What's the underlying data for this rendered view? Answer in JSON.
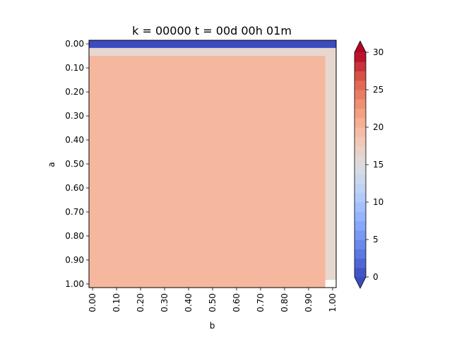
{
  "chart_data": {
    "type": "heatmap",
    "title": "k = 00000 t = 00d 00h 01m",
    "xlabel": "b",
    "ylabel": "a",
    "xlim": [
      0.0,
      1.0
    ],
    "ylim": [
      0.0,
      1.0
    ],
    "y_inverted": true,
    "x_ticks": [
      "0.00",
      "0.10",
      "0.20",
      "0.30",
      "0.40",
      "0.50",
      "0.60",
      "0.70",
      "0.80",
      "0.90",
      "1.00"
    ],
    "y_ticks": [
      "0.00",
      "0.10",
      "0.20",
      "0.30",
      "0.40",
      "0.50",
      "0.60",
      "0.70",
      "0.80",
      "0.90",
      "1.00"
    ],
    "colorbar": {
      "range": [
        0,
        30
      ],
      "ticks": [
        "0",
        "5",
        "10",
        "15",
        "20",
        "25",
        "30"
      ],
      "levels": 24,
      "colormap": "coolwarm",
      "extend": "both"
    },
    "regions": [
      {
        "name": "top-boundary",
        "b": [
          0.0,
          1.0
        ],
        "a": [
          0.0,
          0.017
        ],
        "value": 0,
        "color": "#3b4cc0"
      },
      {
        "name": "edge-band-top",
        "b": [
          0.0,
          1.0
        ],
        "a": [
          0.017,
          0.05
        ],
        "value": 17.5,
        "color": "#e6d7cf"
      },
      {
        "name": "edge-band-right",
        "b": [
          0.97,
          1.0
        ],
        "a": [
          0.05,
          0.983
        ],
        "value": 17.5,
        "color": "#e6d7cf"
      },
      {
        "name": "interior",
        "b": [
          0.0,
          0.97
        ],
        "a": [
          0.05,
          1.0
        ],
        "value": 20,
        "color": "#f5b79e"
      }
    ]
  }
}
